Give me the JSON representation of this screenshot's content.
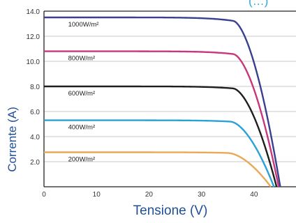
{
  "chart_data": {
    "type": "line",
    "xlabel": "Tensione (V)",
    "ylabel": "Corrente (A)",
    "corner_label": "(…)",
    "xlim": [
      0,
      48
    ],
    "ylim": [
      0,
      14.0
    ],
    "x_ticks": [
      "0",
      "10",
      "20",
      "30",
      "40"
    ],
    "y_ticks": [
      "2.0",
      "4.0",
      "6.0",
      "8.0",
      "10.0",
      "12.0",
      "14.0"
    ],
    "grid": true,
    "series": [
      {
        "name": "1000W/m²",
        "color": "#3a3f8f",
        "isc": 13.5,
        "voc": 45.0,
        "knee": 36.0
      },
      {
        "name": "800W/m²",
        "color": "#c8377b",
        "isc": 10.8,
        "voc": 44.7,
        "knee": 36.0
      },
      {
        "name": "600W/m²",
        "color": "#1e1e1e",
        "isc": 8.0,
        "voc": 44.3,
        "knee": 36.0
      },
      {
        "name": "400W/m²",
        "color": "#2aa2d8",
        "isc": 5.3,
        "voc": 43.8,
        "knee": 35.5
      },
      {
        "name": "200W/m²",
        "color": "#e8aa58",
        "isc": 2.75,
        "voc": 43.2,
        "knee": 35.0
      }
    ]
  }
}
